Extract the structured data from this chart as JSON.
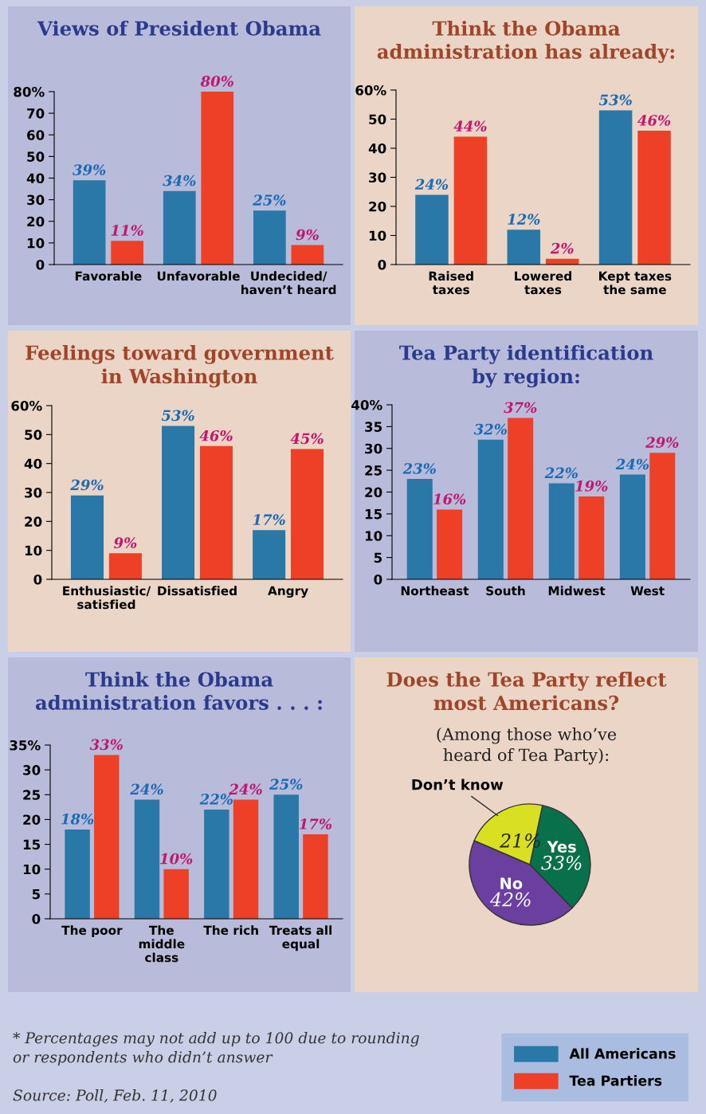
{
  "chart_data": [
    {
      "type": "bar",
      "title": "Views of President Obama",
      "categories": [
        "Favorable",
        "Unfavorable",
        "Undecided/\nhaven’t heard"
      ],
      "series": [
        {
          "name": "All Americans",
          "color": "#2a78a8",
          "values": [
            39,
            34,
            25
          ],
          "value_labels": [
            "39%",
            "34%",
            "25%"
          ]
        },
        {
          "name": "Tea Partiers",
          "color": "#ee4026",
          "values": [
            11,
            80,
            9
          ],
          "value_labels": [
            "11%",
            "80%",
            "9%"
          ]
        }
      ],
      "ylim": [
        0,
        80
      ],
      "yticks": [
        0,
        10,
        20,
        30,
        40,
        50,
        60,
        70,
        {
          "value": 80,
          "label": "80%"
        }
      ],
      "legend": "bottom right"
    },
    {
      "type": "bar",
      "title": "Think the Obama\nadministration has already:",
      "categories": [
        "Raised\ntaxes",
        "Lowered\ntaxes",
        "Kept taxes\nthe same"
      ],
      "series": [
        {
          "color": "#2a78a8",
          "values": [
            24,
            12,
            53
          ],
          "value_labels": [
            "24%",
            "12%",
            "53%"
          ]
        },
        {
          "color": "#ee4026",
          "values": [
            44,
            2,
            46
          ],
          "value_labels": [
            "44%",
            "2%",
            "46%"
          ]
        }
      ],
      "ylim": [
        0,
        60
      ],
      "yticks": [
        0,
        10,
        20,
        30,
        40,
        50,
        {
          "value": 60,
          "label": "60%"
        }
      ]
    },
    {
      "type": "bar",
      "title": "Feelings toward government\nin Washington",
      "categories": [
        "Enthusiastic/\nsatisfied",
        "Dissatisfied",
        "Angry"
      ],
      "series": [
        {
          "color": "#2a78a8",
          "values": [
            29,
            53,
            17
          ],
          "value_labels": [
            "29%",
            "53%",
            "17%"
          ]
        },
        {
          "color": "#ee4026",
          "values": [
            9,
            46,
            45
          ],
          "value_labels": [
            "9%",
            "46%",
            "45%"
          ]
        }
      ],
      "ylim": [
        0,
        60
      ],
      "yticks": [
        0,
        10,
        20,
        30,
        40,
        50,
        {
          "value": 60,
          "label": "60%"
        }
      ]
    },
    {
      "type": "bar",
      "title": "Tea Party identification\nby region:",
      "categories": [
        "Northeast",
        "South",
        "Midwest",
        "West"
      ],
      "series": [
        {
          "color": "#2a78a8",
          "values": [
            23,
            32,
            22,
            24
          ],
          "value_labels": [
            "23%",
            "32%",
            "22%",
            "24%"
          ]
        },
        {
          "color": "#ee4026",
          "values": [
            16,
            37,
            19,
            29
          ],
          "value_labels": [
            "16%",
            "37%",
            "19%",
            "29%"
          ]
        }
      ],
      "ylim": [
        0,
        40
      ],
      "yticks": [
        0,
        5,
        10,
        15,
        20,
        25,
        30,
        35,
        {
          "value": 40,
          "label": "40%"
        }
      ]
    },
    {
      "type": "bar",
      "title": "Think the Obama\nadministration favors . . . :",
      "categories": [
        "The poor",
        "The\nmiddle\nclass",
        "The rich",
        "Treats all\nequal"
      ],
      "series": [
        {
          "color": "#2a78a8",
          "values": [
            18,
            24,
            22,
            25
          ],
          "value_labels": [
            "18%",
            "24%",
            "22%",
            "25%"
          ]
        },
        {
          "color": "#ee4026",
          "values": [
            33,
            10,
            24,
            17
          ],
          "value_labels": [
            "33%",
            "10%",
            "24%",
            "17%"
          ]
        }
      ],
      "ylim": [
        0,
        35
      ],
      "yticks": [
        0,
        5,
        10,
        15,
        20,
        25,
        30,
        {
          "value": 35,
          "label": "35%"
        }
      ]
    },
    {
      "type": "pie",
      "title": "Does the Tea Party reflect\nmost Americans?",
      "subtitle": "(Among those who’ve\nheard of Tea Party):",
      "categories": [
        "Yes",
        "No",
        "Don’t know"
      ],
      "values": [
        33,
        42,
        21
      ],
      "colors": [
        "#08704a",
        "#6a3fa0",
        "#d9e021"
      ],
      "value_labels": [
        "33%",
        "42%",
        "21%"
      ],
      "annotations": [
        "* Percentages may not add up to 100 due to rounding\nor respondents who didn’t answer",
        "Source: Poll, Feb. 11, 2010"
      ]
    }
  ]
}
